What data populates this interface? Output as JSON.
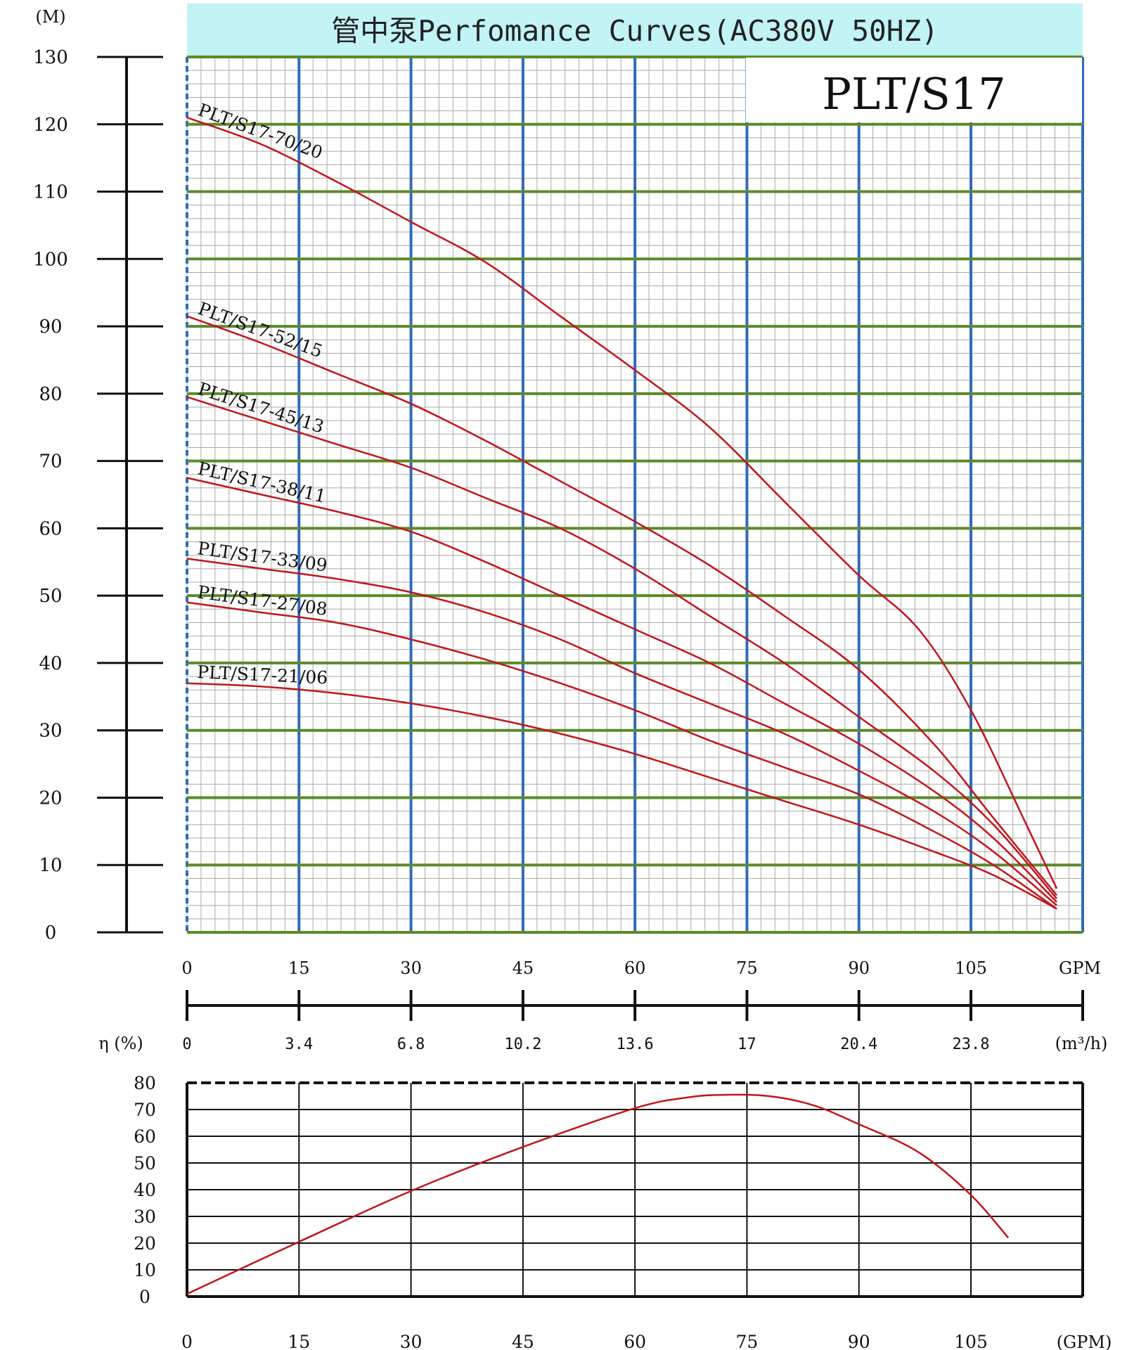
{
  "chart_data": [
    {
      "type": "line",
      "title": "管中泵Perfomance Curves(AC380V 50HZ)",
      "model_label": "PLT/S17",
      "ylabel": "(M)",
      "ylim": [
        0,
        130
      ],
      "y_ticks": [
        "0",
        "10",
        "20",
        "30",
        "40",
        "50",
        "60",
        "70",
        "80",
        "90",
        "100",
        "110",
        "120",
        "130"
      ],
      "xlim": [
        0,
        120
      ],
      "x_ticks_gpm": [
        "0",
        "15",
        "30",
        "45",
        "60",
        "75",
        "90",
        "105"
      ],
      "x_unit_gpm": "GPM",
      "x_ticks_m3h": [
        "0",
        "3.4",
        "6.8",
        "10.2",
        "13.6",
        "17",
        "20.4",
        "23.8"
      ],
      "x_unit_m3h": "(m³/h)",
      "grid": true,
      "colors": {
        "curve": "#c0161c",
        "header_bg": "#c2f3f5",
        "major_h": "#5b8a2a",
        "major_v": "#2e6db5",
        "minor": "#a9a9a9"
      },
      "series": [
        {
          "name": "PLT/S17-70/20",
          "x": [
            0,
            10,
            20,
            30,
            40,
            50,
            60,
            70,
            80,
            90,
            98,
            105,
            112,
            116.5
          ],
          "y": [
            121,
            117,
            111.5,
            105.5,
            99.5,
            91.5,
            83.5,
            75,
            64,
            53,
            45,
            33,
            17,
            6.5
          ]
        },
        {
          "name": "PLT/S17-52/15",
          "x": [
            0,
            10,
            20,
            30,
            40,
            50,
            60,
            70,
            80,
            90,
            100,
            108,
            116.5
          ],
          "y": [
            91.5,
            87.5,
            83,
            78.5,
            73,
            67,
            61,
            54.5,
            47,
            39,
            28,
            17,
            5.5
          ]
        },
        {
          "name": "PLT/S17-45/13",
          "x": [
            0,
            10,
            20,
            30,
            40,
            50,
            60,
            70,
            80,
            90,
            100,
            108,
            116.5
          ],
          "y": [
            79.5,
            76,
            72.5,
            69,
            64.5,
            60,
            54,
            47,
            40,
            32,
            24,
            16,
            5
          ]
        },
        {
          "name": "PLT/S17-38/11",
          "x": [
            0,
            10,
            20,
            30,
            40,
            50,
            60,
            70,
            80,
            90,
            100,
            108,
            116.5
          ],
          "y": [
            67.5,
            65,
            62.5,
            59.5,
            55,
            50,
            45,
            40,
            34,
            28,
            21,
            14,
            4.5
          ]
        },
        {
          "name": "PLT/S17-33/09",
          "x": [
            0,
            10,
            20,
            30,
            40,
            50,
            60,
            70,
            80,
            90,
            100,
            108,
            116.5
          ],
          "y": [
            55.5,
            54,
            52.5,
            50.5,
            47.5,
            43.5,
            38.5,
            34,
            29.5,
            24,
            18,
            12,
            4
          ]
        },
        {
          "name": "PLT/S17-27/08",
          "x": [
            0,
            10,
            20,
            30,
            40,
            50,
            60,
            70,
            80,
            90,
            100,
            108,
            116.5
          ],
          "y": [
            49,
            47.5,
            46,
            43.5,
            40.5,
            37,
            33,
            28.5,
            24.5,
            20.5,
            15,
            10,
            3.5
          ]
        },
        {
          "name": "PLT/S17-21/06",
          "x": [
            0,
            10,
            20,
            30,
            40,
            50,
            60,
            70,
            80,
            90,
            100,
            108,
            116.5
          ],
          "y": [
            37,
            36.5,
            35.5,
            34,
            32,
            29.5,
            26.5,
            23,
            19.5,
            16,
            12,
            8.5,
            3.5
          ]
        }
      ]
    },
    {
      "type": "line",
      "ylabel": "η (%)",
      "ylim": [
        0,
        80
      ],
      "y_ticks": [
        "0",
        "10",
        "20",
        "30",
        "40",
        "50",
        "60",
        "70",
        "80"
      ],
      "xlim": [
        0,
        120
      ],
      "x_ticks": [
        "0",
        "15",
        "30",
        "45",
        "60",
        "75",
        "90",
        "105"
      ],
      "x_unit": "(GPM)",
      "grid": true,
      "series": [
        {
          "x": [
            0,
            15,
            30,
            45,
            60,
            67,
            72,
            78,
            84,
            90,
            98,
            105,
            110
          ],
          "y": [
            1,
            20.5,
            39.5,
            56,
            70.5,
            74.5,
            75.5,
            75,
            71.5,
            64.5,
            54,
            38,
            22
          ]
        }
      ]
    }
  ]
}
